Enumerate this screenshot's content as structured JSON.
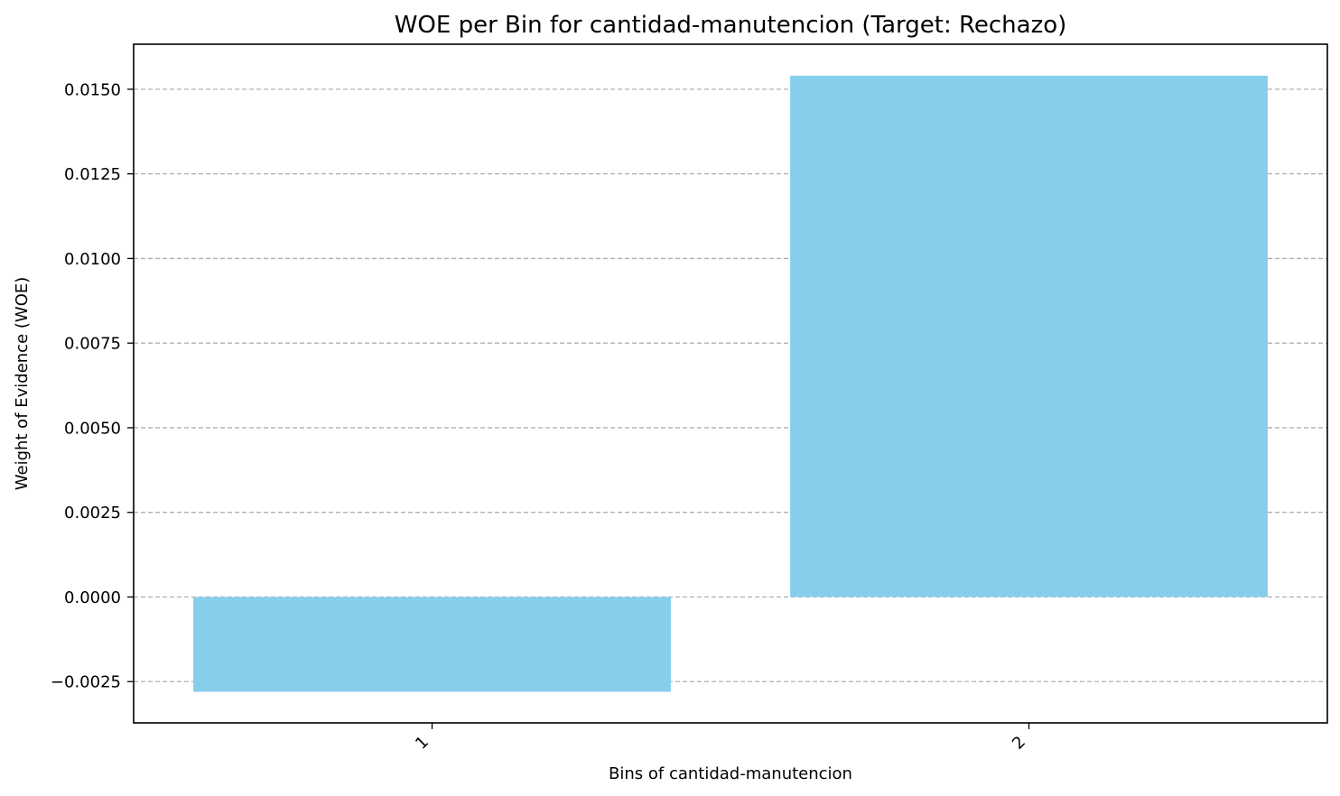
{
  "chart_data": {
    "type": "bar",
    "title": "WOE per Bin for cantidad-manutencion (Target: Rechazo)",
    "xlabel": "Bins of cantidad-manutencion",
    "ylabel": "Weight of Evidence (WOE)",
    "categories": [
      "1",
      "2"
    ],
    "values": [
      -0.0028,
      0.0154
    ],
    "ylim": [
      -0.00372,
      0.01633
    ],
    "yticks": [
      -0.0025,
      0.0,
      0.0025,
      0.005,
      0.0075,
      0.01,
      0.0125,
      0.015
    ],
    "ytick_labels": [
      "−0.0025",
      "0.0000",
      "0.0025",
      "0.0050",
      "0.0075",
      "0.0100",
      "0.0125",
      "0.0150"
    ],
    "grid": true,
    "grid_axis": "y",
    "bar_color": "#87CEEB",
    "xtick_rotation": -45
  }
}
